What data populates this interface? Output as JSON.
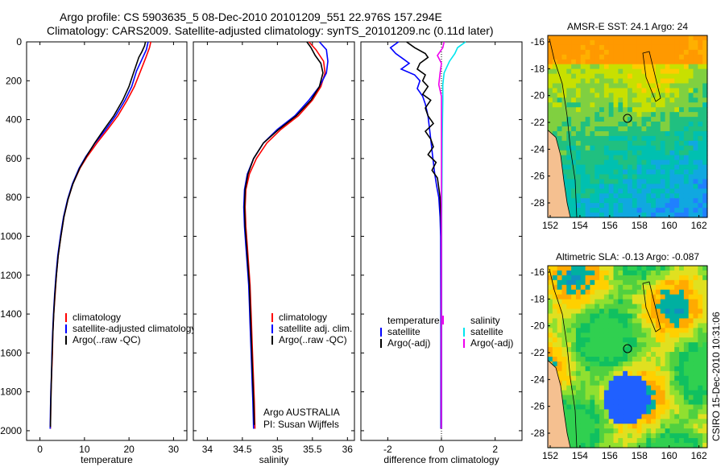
{
  "header": {
    "line1": "Argo profile: CS 5903635_5 08-Dec-2010 20101209_551 22.976S 157.294E",
    "line2": "Climatology: CARS2009. Satellite-adjusted climatology: synTS_20101209.nc (0.11d later)"
  },
  "side_stamp": "CSIRO 15-Dec-2010 10:31:06",
  "credit": {
    "line1": "Argo AUSTRALIA",
    "line2": "PI: Susan Wijffels"
  },
  "colors": {
    "red": "#ff0000",
    "blue": "#0000ff",
    "black": "#000000",
    "cyan": "#00e5ee",
    "magenta": "#ee00ee"
  },
  "chart_data": [
    {
      "id": "temperature",
      "type": "line",
      "xlabel": "temperature",
      "xlim": [
        -3,
        33
      ],
      "xticks": [
        0,
        10,
        20,
        30
      ],
      "xticklabels": [
        "0",
        "10",
        "20",
        "30"
      ],
      "ylim": [
        2050,
        0
      ],
      "yticks": [
        0,
        200,
        400,
        600,
        800,
        1000,
        1200,
        1400,
        1600,
        1800,
        2000
      ],
      "yticklabels": [
        "0",
        "200",
        "400",
        "600",
        "800",
        "1000",
        "1200",
        "1400",
        "1600",
        "1800",
        "2000"
      ],
      "legend": [
        "climatology",
        "satellite-adjusted climatology",
        "Argo(..raw -QC)"
      ],
      "series": [
        {
          "name": "climatology",
          "color": "red",
          "points": [
            [
              24.9,
              0
            ],
            [
              24.6,
              30
            ],
            [
              23.8,
              80
            ],
            [
              22.6,
              150
            ],
            [
              21.2,
              230
            ],
            [
              19.6,
              300
            ],
            [
              17.5,
              380
            ],
            [
              15.2,
              450
            ],
            [
              12.8,
              520
            ],
            [
              10.6,
              590
            ],
            [
              9.0,
              650
            ],
            [
              7.4,
              730
            ],
            [
              6.3,
              810
            ],
            [
              5.4,
              900
            ],
            [
              4.7,
              1000
            ],
            [
              4.1,
              1100
            ],
            [
              3.7,
              1200
            ],
            [
              3.4,
              1300
            ],
            [
              3.1,
              1400
            ],
            [
              2.9,
              1500
            ],
            [
              2.8,
              1600
            ],
            [
              2.65,
              1700
            ],
            [
              2.5,
              1800
            ],
            [
              2.4,
              1900
            ],
            [
              2.35,
              1990
            ]
          ]
        },
        {
          "name": "satellite-adjusted",
          "color": "blue",
          "points": [
            [
              24.3,
              0
            ],
            [
              23.9,
              40
            ],
            [
              22.9,
              90
            ],
            [
              21.7,
              150
            ],
            [
              20.6,
              230
            ],
            [
              19.1,
              300
            ],
            [
              17.0,
              380
            ],
            [
              14.8,
              450
            ],
            [
              12.4,
              520
            ],
            [
              10.3,
              590
            ],
            [
              8.8,
              650
            ],
            [
              7.3,
              730
            ],
            [
              6.2,
              810
            ],
            [
              5.3,
              900
            ],
            [
              4.6,
              1000
            ],
            [
              4.0,
              1100
            ],
            [
              3.6,
              1200
            ],
            [
              3.3,
              1300
            ],
            [
              3.05,
              1400
            ],
            [
              2.85,
              1500
            ],
            [
              2.7,
              1600
            ],
            [
              2.6,
              1700
            ],
            [
              2.45,
              1800
            ],
            [
              2.35,
              1900
            ],
            [
              2.3,
              1990
            ]
          ]
        },
        {
          "name": "argo",
          "color": "black",
          "points": [
            [
              23.7,
              0
            ],
            [
              23.5,
              20
            ],
            [
              22.9,
              50
            ],
            [
              22.2,
              80
            ],
            [
              21.6,
              120
            ],
            [
              21.0,
              160
            ],
            [
              20.0,
              230
            ],
            [
              18.6,
              300
            ],
            [
              16.6,
              380
            ],
            [
              14.4,
              450
            ],
            [
              12.3,
              520
            ],
            [
              10.4,
              590
            ],
            [
              8.9,
              650
            ],
            [
              7.4,
              730
            ],
            [
              6.3,
              810
            ],
            [
              5.4,
              900
            ],
            [
              4.7,
              1000
            ],
            [
              4.1,
              1100
            ],
            [
              3.7,
              1200
            ],
            [
              3.35,
              1300
            ],
            [
              3.1,
              1400
            ],
            [
              2.9,
              1500
            ],
            [
              2.75,
              1600
            ],
            [
              2.6,
              1700
            ],
            [
              2.5,
              1800
            ],
            [
              2.4,
              1900
            ],
            [
              2.35,
              1980
            ]
          ]
        }
      ]
    },
    {
      "id": "salinity",
      "type": "line",
      "xlabel": "salinity",
      "xlim": [
        33.8,
        36.1
      ],
      "xticks": [
        34,
        34.5,
        35,
        35.5,
        36
      ],
      "xticklabels": [
        "34",
        "34.5",
        "35",
        "35.5",
        "36"
      ],
      "ylim": [
        2050,
        0
      ],
      "yticks": [
        0,
        200,
        400,
        600,
        800,
        1000,
        1200,
        1400,
        1600,
        1800,
        2000
      ],
      "legend": [
        "climatology",
        "satellite adj. clim.",
        "Argo(..raw -QC)"
      ],
      "series": [
        {
          "name": "climatology",
          "color": "red",
          "points": [
            [
              35.45,
              0
            ],
            [
              35.55,
              40
            ],
            [
              35.66,
              100
            ],
            [
              35.68,
              160
            ],
            [
              35.62,
              230
            ],
            [
              35.5,
              300
            ],
            [
              35.3,
              380
            ],
            [
              35.05,
              450
            ],
            [
              34.85,
              520
            ],
            [
              34.7,
              600
            ],
            [
              34.6,
              680
            ],
            [
              34.55,
              760
            ],
            [
              34.54,
              850
            ],
            [
              34.55,
              950
            ],
            [
              34.57,
              1050
            ],
            [
              34.59,
              1150
            ],
            [
              34.61,
              1250
            ],
            [
              34.62,
              1350
            ],
            [
              34.63,
              1450
            ],
            [
              34.64,
              1550
            ],
            [
              34.65,
              1650
            ],
            [
              34.66,
              1750
            ],
            [
              34.67,
              1850
            ],
            [
              34.68,
              1990
            ]
          ]
        },
        {
          "name": "satellite-adjusted",
          "color": "blue",
          "points": [
            [
              35.6,
              0
            ],
            [
              35.7,
              40
            ],
            [
              35.72,
              100
            ],
            [
              35.7,
              160
            ],
            [
              35.6,
              230
            ],
            [
              35.45,
              300
            ],
            [
              35.25,
              380
            ],
            [
              35.0,
              450
            ],
            [
              34.8,
              520
            ],
            [
              34.66,
              600
            ],
            [
              34.57,
              680
            ],
            [
              34.53,
              760
            ],
            [
              34.52,
              850
            ],
            [
              34.53,
              950
            ],
            [
              34.55,
              1050
            ],
            [
              34.57,
              1150
            ],
            [
              34.59,
              1250
            ],
            [
              34.6,
              1350
            ],
            [
              34.61,
              1450
            ],
            [
              34.62,
              1550
            ],
            [
              34.63,
              1650
            ],
            [
              34.64,
              1750
            ],
            [
              34.65,
              1850
            ],
            [
              34.66,
              1990
            ]
          ]
        },
        {
          "name": "argo",
          "color": "black",
          "points": [
            [
              35.42,
              0
            ],
            [
              35.48,
              30
            ],
            [
              35.54,
              70
            ],
            [
              35.62,
              110
            ],
            [
              35.65,
              160
            ],
            [
              35.6,
              230
            ],
            [
              35.48,
              300
            ],
            [
              35.27,
              380
            ],
            [
              35.02,
              450
            ],
            [
              34.8,
              520
            ],
            [
              34.66,
              600
            ],
            [
              34.58,
              680
            ],
            [
              34.54,
              760
            ],
            [
              34.53,
              850
            ],
            [
              34.54,
              950
            ],
            [
              34.56,
              1050
            ],
            [
              34.58,
              1150
            ],
            [
              34.6,
              1250
            ],
            [
              34.61,
              1350
            ],
            [
              34.62,
              1450
            ],
            [
              34.63,
              1550
            ],
            [
              34.64,
              1650
            ],
            [
              34.65,
              1750
            ],
            [
              34.66,
              1850
            ],
            [
              34.67,
              1970
            ]
          ]
        }
      ]
    },
    {
      "id": "difference",
      "type": "line",
      "xlabel": "difference from climatology",
      "xlim": [
        -3,
        3
      ],
      "xticks": [
        -2,
        0,
        2
      ],
      "xticklabels": [
        "-2",
        "0",
        "2"
      ],
      "ylim": [
        2050,
        0
      ],
      "yticks": [
        0,
        200,
        400,
        600,
        800,
        1000,
        1200,
        1400,
        1600,
        1800,
        2000
      ],
      "legend_left_title": "temperature",
      "legend_left": [
        "satellite",
        "Argo(-adj)"
      ],
      "legend_right_title": "salinity",
      "legend_right": [
        "satellite",
        "Argo(-adj)"
      ],
      "series": [
        {
          "name": "temperature satellite",
          "color": "blue",
          "points": [
            [
              -1.6,
              0
            ],
            [
              -1.9,
              30
            ],
            [
              -1.7,
              60
            ],
            [
              -1.4,
              90
            ],
            [
              -1.2,
              110
            ],
            [
              -1.5,
              140
            ],
            [
              -1.0,
              170
            ],
            [
              -0.8,
              200
            ],
            [
              -0.9,
              240
            ],
            [
              -0.7,
              280
            ],
            [
              -0.6,
              320
            ],
            [
              -0.5,
              380
            ],
            [
              -0.45,
              440
            ],
            [
              -0.4,
              500
            ],
            [
              -0.35,
              560
            ],
            [
              -0.3,
              620
            ],
            [
              -0.25,
              680
            ],
            [
              -0.18,
              740
            ],
            [
              -0.1,
              800
            ],
            [
              -0.05,
              900
            ],
            [
              -0.03,
              1000
            ],
            [
              -0.02,
              1500
            ],
            [
              -0.02,
              1990
            ]
          ]
        },
        {
          "name": "temperature argo",
          "color": "black",
          "points": [
            [
              -1.3,
              0
            ],
            [
              -1.0,
              30
            ],
            [
              -0.6,
              60
            ],
            [
              -0.5,
              80
            ],
            [
              -0.8,
              110
            ],
            [
              -0.9,
              140
            ],
            [
              -0.6,
              170
            ],
            [
              -0.7,
              200
            ],
            [
              -0.5,
              230
            ],
            [
              -0.7,
              270
            ],
            [
              -0.4,
              300
            ],
            [
              -0.6,
              340
            ],
            [
              -0.5,
              380
            ],
            [
              -0.3,
              420
            ],
            [
              -0.6,
              460
            ],
            [
              -0.4,
              500
            ],
            [
              -0.3,
              540
            ],
            [
              -0.5,
              580
            ],
            [
              -0.2,
              620
            ],
            [
              -0.35,
              660
            ],
            [
              -0.15,
              700
            ],
            [
              -0.1,
              750
            ],
            [
              -0.05,
              800
            ],
            [
              -0.02,
              900
            ],
            [
              0,
              1000
            ],
            [
              0,
              1990
            ]
          ]
        },
        {
          "name": "salinity satellite",
          "color": "cyan",
          "points": [
            [
              0.9,
              0
            ],
            [
              0.6,
              30
            ],
            [
              0.5,
              60
            ],
            [
              0.3,
              100
            ],
            [
              0.1,
              160
            ],
            [
              0.05,
              220
            ],
            [
              0.05,
              300
            ],
            [
              0.04,
              400
            ],
            [
              0.03,
              500
            ],
            [
              0.02,
              700
            ],
            [
              0.01,
              900
            ],
            [
              0.01,
              1200
            ],
            [
              0.01,
              1990
            ]
          ]
        },
        {
          "name": "salinity argo",
          "color": "magenta",
          "points": [
            [
              0.1,
              0
            ],
            [
              0.05,
              30
            ],
            [
              -0.15,
              70
            ],
            [
              0.0,
              110
            ],
            [
              -0.05,
              160
            ],
            [
              -0.1,
              220
            ],
            [
              0.0,
              280
            ],
            [
              0.0,
              400
            ],
            [
              0.0,
              600
            ],
            [
              0.0,
              800
            ],
            [
              0.0,
              1000
            ],
            [
              0.0,
              1990
            ]
          ]
        }
      ]
    }
  ],
  "maps": [
    {
      "id": "sst",
      "type": "heatmap",
      "title": "AMSR-E SST: 24.1  Argo: 24",
      "xticklabels": [
        "152",
        "154",
        "156",
        "158",
        "160",
        "162"
      ],
      "yticklabels": [
        "-16",
        "-18",
        "-20",
        "-22",
        "-24",
        "-26",
        "-28"
      ]
    },
    {
      "id": "sla",
      "type": "heatmap",
      "title": "Altimetric SLA: -0.13  Argo: -0.087",
      "xticklabels": [
        "152",
        "154",
        "156",
        "158",
        "160",
        "162"
      ],
      "yticklabels": [
        "-16",
        "-18",
        "-20",
        "-22",
        "-24",
        "-26",
        "-28"
      ]
    }
  ]
}
